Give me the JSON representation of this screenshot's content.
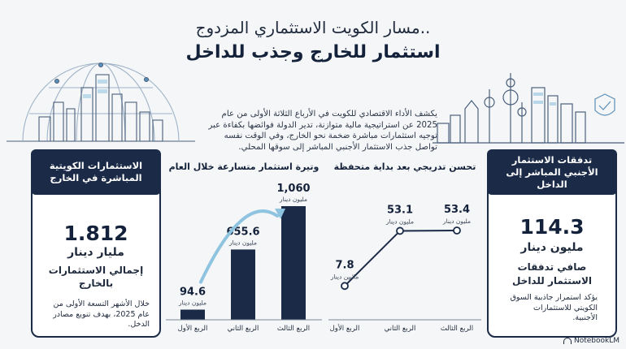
{
  "header": {
    "title_line1": "مسار الكويت الاستثماري المزدوج..",
    "title_line2": "استثمار للخارج وجذب للداخل"
  },
  "intro_text": "يكشف الأداء الاقتصادي للكويت في الأرباع الثلاثة الأولى من عام 2025 عن استراتيجية مالية متوازنة، تدير الدولة فوائضها بكفاءة عبر توجيه استثمارات مباشرة ضخمة نحو الخارج، وفي الوقت نفسه تواصل جذب الاستثمار الأجنبي المباشر إلى سوقها المحلي.",
  "left_card": {
    "header": "الاستثمارات الكويتية المباشرة في الخارج",
    "value": "1.812",
    "unit": "مليار دينار",
    "label": "إجمالي الاستثمارات بالخارج",
    "note": "خلال الأشهر التسعة الأولى من عام 2025، بهدف تنويع مصادر الدخل."
  },
  "right_card": {
    "header": "تدفقات الاستثمار الأجنبي المباشر إلى الداخل",
    "value": "114.3",
    "unit": "مليون دينار",
    "label": "صافي تدفقات الاستثمار للداخل",
    "note": "يؤكد استمرار جاذبية السوق الكويتي للاستثمارات الأجنبية."
  },
  "chart_data": [
    {
      "type": "bar",
      "title": "وتيرة استثمار متسارعة خلال العام",
      "categories": [
        "الربع الأول",
        "الربع الثاني",
        "الربع الثالث"
      ],
      "values": [
        94.6,
        655.6,
        1060
      ],
      "value_labels": [
        "94.6",
        "655.6",
        "1,060"
      ],
      "unit_label": "مليون دينار",
      "ylim": [
        0,
        1060
      ],
      "color": "#1b2b47",
      "arrow_color": "#8fc4e0"
    },
    {
      "type": "line",
      "title": "تحسن تدريجي بعد بداية متحفظة",
      "categories": [
        "الربع الأول",
        "الربع الثاني",
        "الربع الثالث"
      ],
      "values": [
        7.8,
        53.1,
        53.4
      ],
      "value_labels": [
        "7.8",
        "53.1",
        "53.4"
      ],
      "unit_labels": [
        "ملايين دينار",
        "مليون دينار",
        "مليون دينار"
      ],
      "ylim": [
        0,
        53.4
      ],
      "color": "#1b2b47"
    }
  ],
  "branding": {
    "logo_text": "NotebookLM"
  },
  "colors": {
    "navy": "#1b2b47",
    "accent": "#8fc4e0"
  }
}
